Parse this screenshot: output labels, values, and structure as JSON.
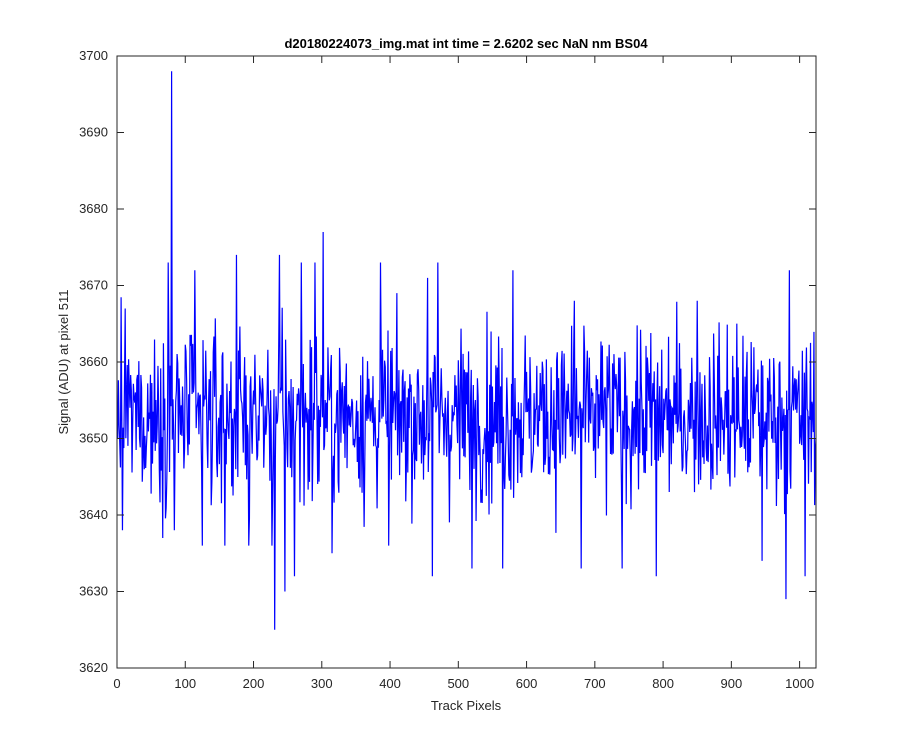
{
  "chart_data": {
    "type": "line",
    "title": "d20180224073_img.mat int time = 2.6202 sec  NaN nm BS04",
    "xlabel": "Track Pixels",
    "ylabel": "Signal (ADU) at pixel 511",
    "xlim": [
      0,
      1024
    ],
    "ylim": [
      3620,
      3700
    ],
    "xticks": [
      0,
      100,
      200,
      300,
      400,
      500,
      600,
      700,
      800,
      900,
      1000
    ],
    "yticks": [
      3620,
      3630,
      3640,
      3650,
      3660,
      3670,
      3680,
      3690,
      3700
    ],
    "grid": false,
    "legend": "none",
    "series": [
      {
        "color": "#0000ff",
        "x_start": 1,
        "x_step": 1,
        "y_mean": 3653,
        "y_noise_amplitude": 6,
        "points": [
          {
            "x": 1,
            "y": 3650
          },
          {
            "x": 8,
            "y": 3638
          },
          {
            "x": 12,
            "y": 3667
          },
          {
            "x": 75,
            "y": 3673
          },
          {
            "x": 80,
            "y": 3698
          },
          {
            "x": 84,
            "y": 3638
          },
          {
            "x": 114,
            "y": 3672
          },
          {
            "x": 125,
            "y": 3636
          },
          {
            "x": 158,
            "y": 3636
          },
          {
            "x": 175,
            "y": 3674
          },
          {
            "x": 193,
            "y": 3636
          },
          {
            "x": 227,
            "y": 3636
          },
          {
            "x": 231,
            "y": 3625
          },
          {
            "x": 238,
            "y": 3674
          },
          {
            "x": 246,
            "y": 3630
          },
          {
            "x": 260,
            "y": 3632
          },
          {
            "x": 270,
            "y": 3673
          },
          {
            "x": 290,
            "y": 3673
          },
          {
            "x": 302,
            "y": 3677
          },
          {
            "x": 315,
            "y": 3635
          },
          {
            "x": 386,
            "y": 3673
          },
          {
            "x": 398,
            "y": 3636
          },
          {
            "x": 455,
            "y": 3671
          },
          {
            "x": 462,
            "y": 3632
          },
          {
            "x": 470,
            "y": 3673
          },
          {
            "x": 520,
            "y": 3633
          },
          {
            "x": 565,
            "y": 3633
          },
          {
            "x": 580,
            "y": 3672
          },
          {
            "x": 670,
            "y": 3668
          },
          {
            "x": 680,
            "y": 3633
          },
          {
            "x": 740,
            "y": 3633
          },
          {
            "x": 790,
            "y": 3632
          },
          {
            "x": 850,
            "y": 3668
          },
          {
            "x": 945,
            "y": 3634
          },
          {
            "x": 980,
            "y": 3629
          },
          {
            "x": 985,
            "y": 3672
          },
          {
            "x": 1008,
            "y": 3632
          },
          {
            "x": 1024,
            "y": 3650
          }
        ]
      }
    ]
  }
}
